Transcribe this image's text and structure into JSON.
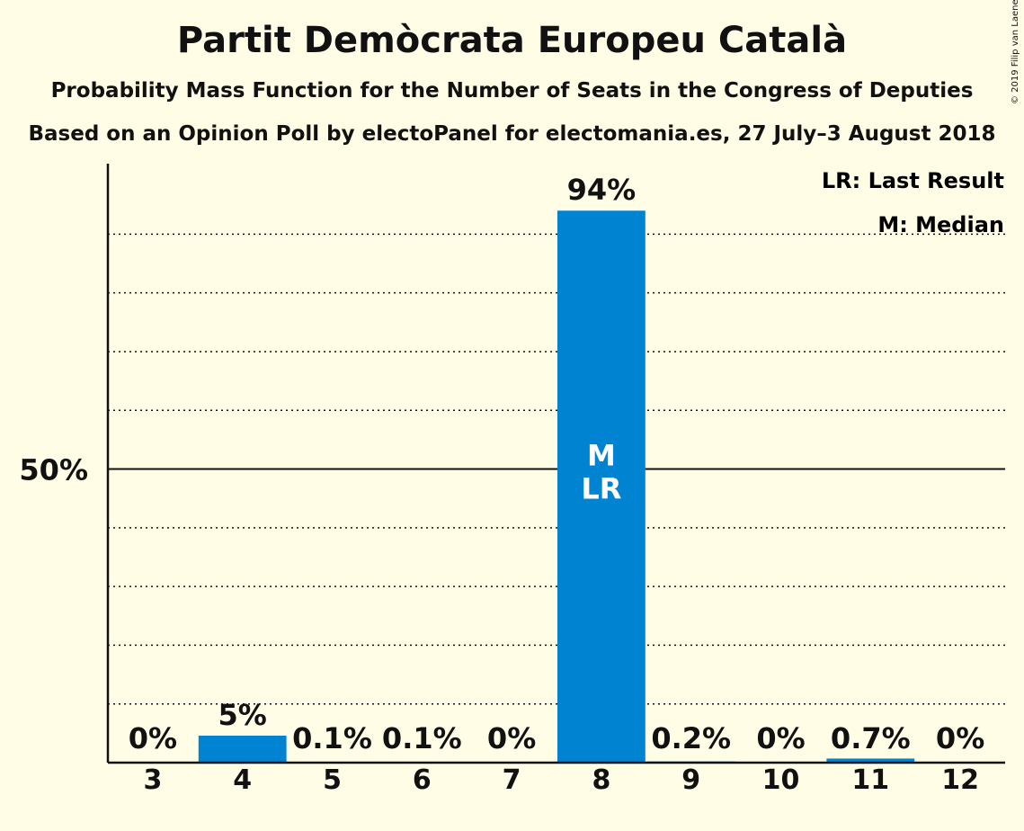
{
  "title": "Partit Demòcrata Europeu Català",
  "subtitle1": "Probability Mass Function for the Number of Seats in the Congress of Deputies",
  "subtitle2": "Based on an Opinion Poll by electoPanel for electomania.es, 27 July–3 August 2018",
  "copyright": "© 2019 Filip van Laenen",
  "legend": {
    "last_result": "LR: Last Result",
    "median": "M: Median"
  },
  "colors": {
    "bar": "#0084d1",
    "background": "#fffde6",
    "text": "#111111"
  },
  "chart_data": {
    "type": "bar",
    "categories": [
      "3",
      "4",
      "5",
      "6",
      "7",
      "8",
      "9",
      "10",
      "11",
      "12"
    ],
    "values": [
      0,
      4.6,
      0.1,
      0.1,
      0,
      94,
      0.2,
      0,
      0.7,
      0
    ],
    "value_labels": [
      "0%",
      "5%",
      "0.1%",
      "0.1%",
      "0%",
      "94%",
      "0.2%",
      "0%",
      "0.7%",
      "0%"
    ],
    "ylim": [
      0,
      102
    ],
    "y_tick_labels": [
      {
        "value": 50,
        "label": "50%"
      }
    ],
    "gridlines_dotted": [
      10,
      20,
      30,
      40,
      60,
      70,
      80,
      90
    ],
    "gridline_solid": 50,
    "bar_markers": {
      "8": [
        "M",
        "LR"
      ]
    }
  }
}
